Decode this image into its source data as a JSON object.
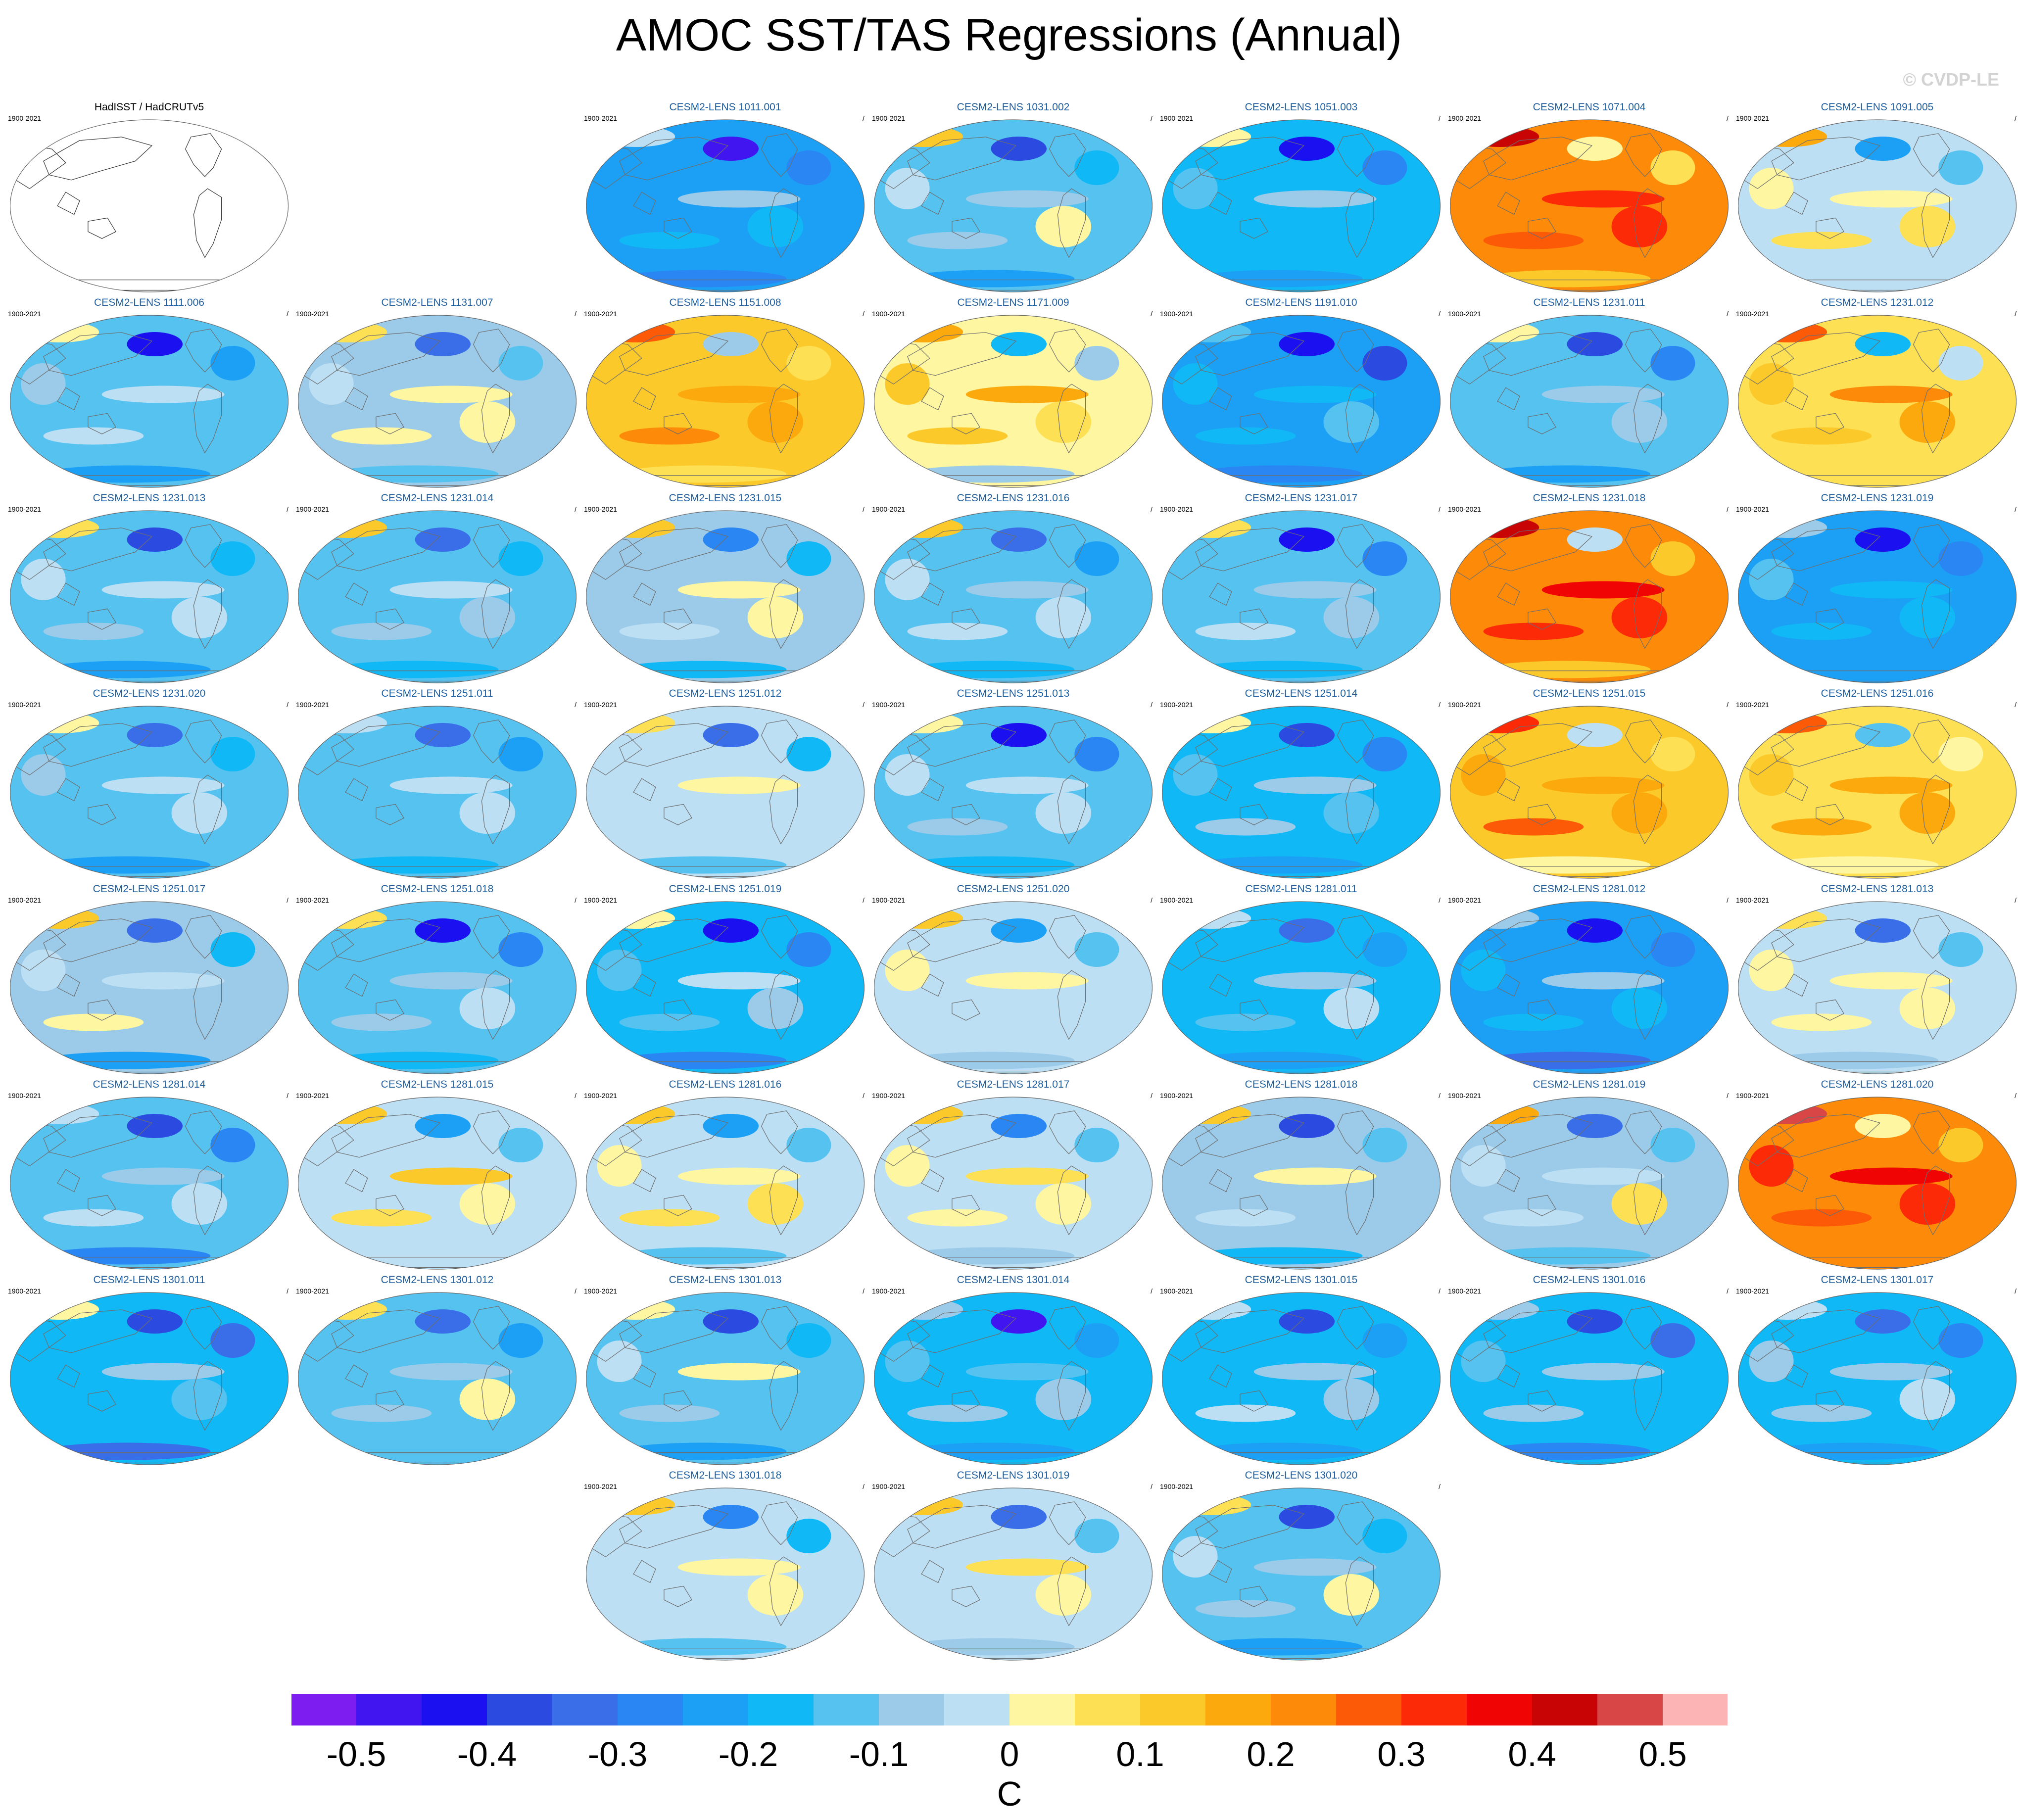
{
  "title": "AMOC SST/TAS Regressions (Annual)",
  "watermark": "© CVDP-LE",
  "period": "1900-2021",
  "slash": "/",
  "observation_panel": {
    "title": "HadISST / HadCRUTv5",
    "period": "1900-2021",
    "map": "blank world map with coastlines"
  },
  "member_panels": [
    {
      "title": "CESM2-LENS 1011.001",
      "period": "1900-2021",
      "warmth": -0.22
    },
    {
      "title": "CESM2-LENS 1031.002",
      "period": "1900-2021",
      "warmth": -0.12
    },
    {
      "title": "CESM2-LENS 1051.003",
      "period": "1900-2021",
      "warmth": -0.2
    },
    {
      "title": "CESM2-LENS 1071.004",
      "period": "1900-2021",
      "warmth": 0.22
    },
    {
      "title": "CESM2-LENS 1091.005",
      "period": "1900-2021",
      "warmth": -0.02
    },
    {
      "title": "CESM2-LENS 1111.006",
      "period": "1900-2021",
      "warmth": -0.15
    },
    {
      "title": "CESM2-LENS 1131.007",
      "period": "1900-2021",
      "warmth": -0.07
    },
    {
      "title": "CESM2-LENS 1151.008",
      "period": "1900-2021",
      "warmth": 0.12
    },
    {
      "title": "CESM2-LENS 1171.009",
      "period": "1900-2021",
      "warmth": 0.02
    },
    {
      "title": "CESM2-LENS 1191.010",
      "period": "1900-2021",
      "warmth": -0.25
    },
    {
      "title": "CESM2-LENS 1231.011",
      "period": "1900-2021",
      "warmth": -0.13
    },
    {
      "title": "CESM2-LENS 1231.012",
      "period": "1900-2021",
      "warmth": 0.08
    },
    {
      "title": "CESM2-LENS 1231.013",
      "period": "1900-2021",
      "warmth": -0.12
    },
    {
      "title": "CESM2-LENS 1231.014",
      "period": "1900-2021",
      "warmth": -0.12
    },
    {
      "title": "CESM2-LENS 1231.015",
      "period": "1900-2021",
      "warmth": -0.1
    },
    {
      "title": "CESM2-LENS 1231.016",
      "period": "1900-2021",
      "warmth": -0.12
    },
    {
      "title": "CESM2-LENS 1231.017",
      "period": "1900-2021",
      "warmth": -0.15
    },
    {
      "title": "CESM2-LENS 1231.018",
      "period": "1900-2021",
      "warmth": 0.22
    },
    {
      "title": "CESM2-LENS 1231.019",
      "period": "1900-2021",
      "warmth": -0.22
    },
    {
      "title": "CESM2-LENS 1231.020",
      "period": "1900-2021",
      "warmth": -0.14
    },
    {
      "title": "CESM2-LENS 1251.011",
      "period": "1900-2021",
      "warmth": -0.14
    },
    {
      "title": "CESM2-LENS 1251.012",
      "period": "1900-2021",
      "warmth": -0.05
    },
    {
      "title": "CESM2-LENS 1251.013",
      "period": "1900-2021",
      "warmth": -0.14
    },
    {
      "title": "CESM2-LENS 1251.014",
      "period": "1900-2021",
      "warmth": -0.17
    },
    {
      "title": "CESM2-LENS 1251.015",
      "period": "1900-2021",
      "warmth": 0.14
    },
    {
      "title": "CESM2-LENS 1251.016",
      "period": "1900-2021",
      "warmth": 0.05
    },
    {
      "title": "CESM2-LENS 1251.017",
      "period": "1900-2021",
      "warmth": -0.1
    },
    {
      "title": "CESM2-LENS 1251.018",
      "period": "1900-2021",
      "warmth": -0.14
    },
    {
      "title": "CESM2-LENS 1251.019",
      "period": "1900-2021",
      "warmth": -0.17
    },
    {
      "title": "CESM2-LENS 1251.020",
      "period": "1900-2021",
      "warmth": -0.05
    },
    {
      "title": "CESM2-LENS 1281.011",
      "period": "1900-2021",
      "warmth": -0.17
    },
    {
      "title": "CESM2-LENS 1281.012",
      "period": "1900-2021",
      "warmth": -0.22
    },
    {
      "title": "CESM2-LENS 1281.013",
      "period": "1900-2021",
      "warmth": -0.05
    },
    {
      "title": "CESM2-LENS 1281.014",
      "period": "1900-2021",
      "warmth": -0.15
    },
    {
      "title": "CESM2-LENS 1281.015",
      "period": "1900-2021",
      "warmth": -0.02
    },
    {
      "title": "CESM2-LENS 1281.016",
      "period": "1900-2021",
      "warmth": -0.03
    },
    {
      "title": "CESM2-LENS 1281.017",
      "period": "1900-2021",
      "warmth": -0.05
    },
    {
      "title": "CESM2-LENS 1281.018",
      "period": "1900-2021",
      "warmth": -0.1
    },
    {
      "title": "CESM2-LENS 1281.019",
      "period": "1900-2021",
      "warmth": -0.07
    },
    {
      "title": "CESM2-LENS 1281.020",
      "period": "1900-2021",
      "warmth": 0.24
    },
    {
      "title": "CESM2-LENS 1301.011",
      "period": "1900-2021",
      "warmth": -0.2
    },
    {
      "title": "CESM2-LENS 1301.012",
      "period": "1900-2021",
      "warmth": -0.12
    },
    {
      "title": "CESM2-LENS 1301.013",
      "period": "1900-2021",
      "warmth": -0.14
    },
    {
      "title": "CESM2-LENS 1301.014",
      "period": "1900-2021",
      "warmth": -0.2
    },
    {
      "title": "CESM2-LENS 1301.015",
      "period": "1900-2021",
      "warmth": -0.16
    },
    {
      "title": "CESM2-LENS 1301.016",
      "period": "1900-2021",
      "warmth": -0.2
    },
    {
      "title": "CESM2-LENS 1301.017",
      "period": "1900-2021",
      "warmth": -0.16
    },
    {
      "title": "CESM2-LENS 1301.018",
      "period": "1900-2021",
      "warmth": -0.05
    },
    {
      "title": "CESM2-LENS 1301.019",
      "period": "1900-2021",
      "warmth": -0.05
    },
    {
      "title": "CESM2-LENS 1301.020",
      "period": "1900-2021",
      "warmth": -0.12
    }
  ],
  "colorbar": {
    "units": "C",
    "min": -0.55,
    "max": 0.55,
    "step": 0.05,
    "colors": [
      "#7e1df0",
      "#4015f0",
      "#1a10f0",
      "#2b4be0",
      "#3a6ee8",
      "#2a86f2",
      "#1ca0f5",
      "#10b8f5",
      "#56c2f0",
      "#9ccbea",
      "#bcdff4",
      "#fef6a0",
      "#fde054",
      "#fcc92a",
      "#fca90e",
      "#fd8a08",
      "#fc5a06",
      "#fc2a06",
      "#f00404",
      "#c80404",
      "#d84646",
      "#fdb4b4"
    ],
    "tick_labels": [
      "-0.5",
      "-0.4",
      "-0.3",
      "-0.2",
      "-0.1",
      "0",
      "0.1",
      "0.2",
      "0.3",
      "0.4",
      "0.5"
    ],
    "tick_values": [
      -0.5,
      -0.4,
      -0.3,
      -0.2,
      -0.1,
      0,
      0.1,
      0.2,
      0.3,
      0.4,
      0.5
    ]
  }
}
